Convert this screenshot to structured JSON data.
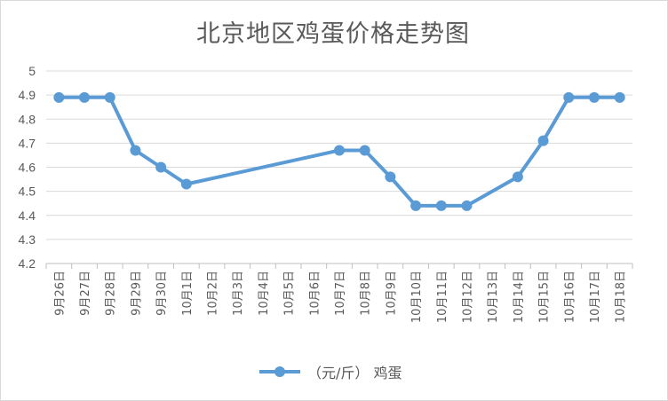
{
  "chart_data": {
    "type": "line",
    "title": "北京地区鸡蛋价格走势图",
    "categories": [
      "9月26日",
      "9月27日",
      "9月28日",
      "9月29日",
      "9月30日",
      "10月1日",
      "10月2日",
      "10月3日",
      "10月4日",
      "10月5日",
      "10月6日",
      "10月7日",
      "10月8日",
      "10月9日",
      "10月10日",
      "10月11日",
      "10月12日",
      "10月13日",
      "10月14日",
      "10月15日",
      "10月16日",
      "10月17日",
      "10月18日"
    ],
    "series": [
      {
        "name": "（元/斤） 鸡蛋",
        "color": "#5b9bd5",
        "values": [
          4.89,
          4.89,
          4.89,
          4.67,
          4.6,
          4.53,
          null,
          null,
          null,
          null,
          null,
          4.67,
          4.67,
          4.56,
          4.44,
          4.44,
          4.44,
          null,
          4.56,
          4.71,
          4.89,
          4.89,
          4.89
        ]
      }
    ],
    "ylim": [
      4.2,
      5
    ],
    "yticks": [
      "4.2",
      "4.3",
      "4.4",
      "4.5",
      "4.6",
      "4.7",
      "4.8",
      "4.9",
      "5"
    ],
    "grid": true,
    "legend": "bottom",
    "xlabel": "",
    "ylabel": ""
  }
}
